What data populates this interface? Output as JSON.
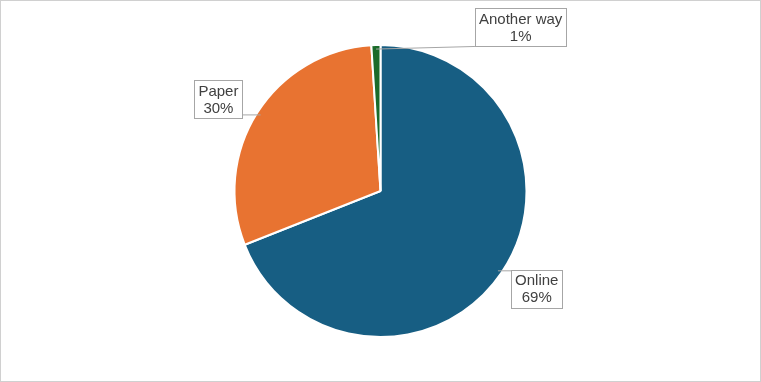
{
  "chart_data": {
    "type": "pie",
    "categories": [
      "Online",
      "Paper",
      "Another way"
    ],
    "values": [
      69,
      30,
      1
    ],
    "value_labels": [
      "69%",
      "30%",
      "1%"
    ],
    "colors": [
      "#175e83",
      "#e87331",
      "#1b6b2a"
    ],
    "data_labels": true
  }
}
